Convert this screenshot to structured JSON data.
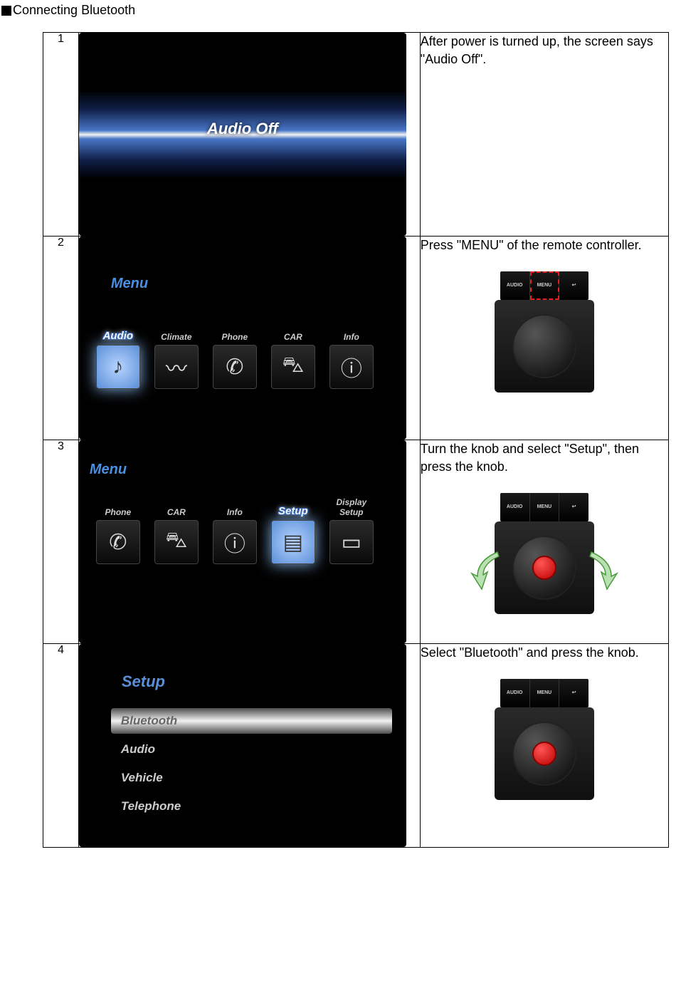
{
  "header": {
    "title": "Connecting Bluetooth"
  },
  "colors": {
    "header_square": "#000000",
    "screen_bg": "#000000",
    "accent_blue": "#4a90e2",
    "text": "#000000",
    "red_dot": "#e00000",
    "arrow_fill": "#b8e0b0",
    "arrow_stroke": "#4a9a3a",
    "highlight_red": "#e02020"
  },
  "controller_buttons": {
    "audio": "AUDIO",
    "menu": "MENU",
    "back": "↩"
  },
  "steps": [
    {
      "num": "1",
      "description": "After power is turned up, the screen says \"Audio Off\".",
      "screen": {
        "type": "audio_off",
        "text": "Audio Off"
      }
    },
    {
      "num": "2",
      "description": "Press \"MENU\" of the remote controller.",
      "screen": {
        "type": "menu_row",
        "title": "Menu",
        "selected_index": 0,
        "items": [
          {
            "label": "Audio",
            "glyph": "♪"
          },
          {
            "label": "Climate",
            "glyph": "〰"
          },
          {
            "label": "Phone",
            "glyph": "✆"
          },
          {
            "label": "CAR",
            "glyph": "⛍"
          },
          {
            "label": "Info",
            "glyph": "ⓘ"
          }
        ]
      },
      "controller": {
        "show": true,
        "highlight_menu": true,
        "red_dot": false,
        "arrows": false
      }
    },
    {
      "num": "3",
      "description": "Turn the knob and select \"Setup\", then press the knob.",
      "screen": {
        "type": "menu_row",
        "title": "Menu",
        "title_pos": "cut",
        "selected_index": 3,
        "items": [
          {
            "label": "Phone",
            "glyph": "✆"
          },
          {
            "label": "CAR",
            "glyph": "⛍"
          },
          {
            "label": "Info",
            "glyph": "ⓘ"
          },
          {
            "label": "Setup",
            "glyph": "▤"
          },
          {
            "label": "Display Setup",
            "glyph": "▭"
          }
        ]
      },
      "controller": {
        "show": true,
        "highlight_menu": false,
        "red_dot": true,
        "arrows": true
      }
    },
    {
      "num": "4",
      "description": "Select \"Bluetooth\" and press the knob.",
      "screen": {
        "type": "setup_list",
        "title": "Setup",
        "selected_index": 0,
        "items": [
          "Bluetooth",
          "Audio",
          "Vehicle",
          "Telephone"
        ]
      },
      "controller": {
        "show": true,
        "highlight_menu": false,
        "red_dot": true,
        "arrows": false
      }
    }
  ]
}
